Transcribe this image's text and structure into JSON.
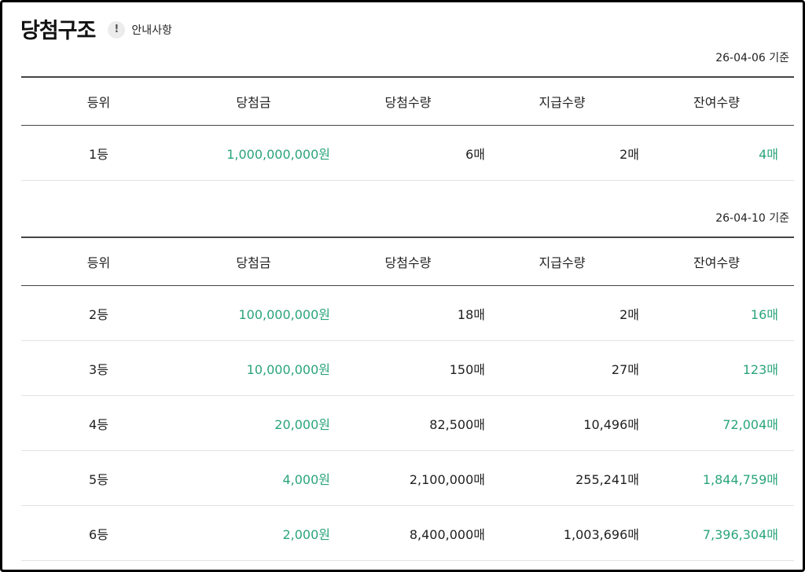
{
  "header": {
    "title": "당첨구조",
    "info_icon": "!",
    "info_label": "안내사항"
  },
  "colors": {
    "accent": "#2aa47a"
  },
  "columns": [
    "등위",
    "당첨금",
    "당첨수량",
    "지급수량",
    "잔여수량"
  ],
  "section1": {
    "stamp": "26-04-06 기준",
    "rows": [
      {
        "rank": "1등",
        "prize": "1,000,000,000원",
        "won": "6매",
        "paid": "2매",
        "remaining": "4매"
      }
    ]
  },
  "section2": {
    "stamp": "26-04-10 기준",
    "rows": [
      {
        "rank": "2등",
        "prize": "100,000,000원",
        "won": "18매",
        "paid": "2매",
        "remaining": "16매"
      },
      {
        "rank": "3등",
        "prize": "10,000,000원",
        "won": "150매",
        "paid": "27매",
        "remaining": "123매"
      },
      {
        "rank": "4등",
        "prize": "20,000원",
        "won": "82,500매",
        "paid": "10,496매",
        "remaining": "72,004매"
      },
      {
        "rank": "5등",
        "prize": "4,000원",
        "won": "2,100,000매",
        "paid": "255,241매",
        "remaining": "1,844,759매"
      },
      {
        "rank": "6등",
        "prize": "2,000원",
        "won": "8,400,000매",
        "paid": "1,003,696매",
        "remaining": "7,396,304매"
      }
    ]
  }
}
